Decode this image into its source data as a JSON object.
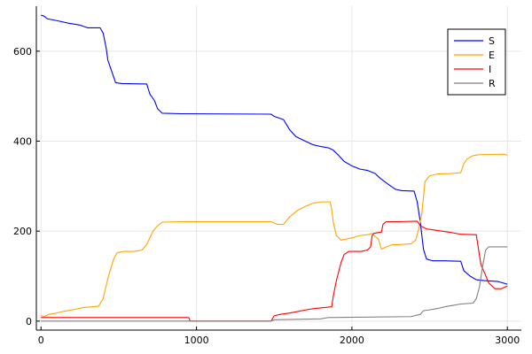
{
  "chart_data": {
    "type": "line",
    "title": "",
    "xlabel": "",
    "ylabel": "",
    "xlim": [
      -30,
      3090
    ],
    "ylim": [
      -20,
      700
    ],
    "xticks": [
      0,
      1000,
      2000,
      3000
    ],
    "yticks": [
      0,
      200,
      400,
      600
    ],
    "grid": true,
    "legend_position": "top-right",
    "series": [
      {
        "name": "S",
        "color": "#0000ff",
        "points": [
          [
            0,
            680
          ],
          [
            20,
            678
          ],
          [
            40,
            672
          ],
          [
            100,
            668
          ],
          [
            180,
            662
          ],
          [
            250,
            658
          ],
          [
            300,
            652
          ],
          [
            380,
            652
          ],
          [
            400,
            640
          ],
          [
            420,
            605
          ],
          [
            430,
            580
          ],
          [
            450,
            560
          ],
          [
            480,
            530
          ],
          [
            520,
            528
          ],
          [
            680,
            527
          ],
          [
            700,
            505
          ],
          [
            730,
            490
          ],
          [
            750,
            472
          ],
          [
            780,
            462
          ],
          [
            900,
            461
          ],
          [
            1480,
            460
          ],
          [
            1500,
            455
          ],
          [
            1560,
            448
          ],
          [
            1600,
            425
          ],
          [
            1640,
            410
          ],
          [
            1700,
            400
          ],
          [
            1750,
            392
          ],
          [
            1800,
            388
          ],
          [
            1850,
            385
          ],
          [
            1880,
            380
          ],
          [
            1910,
            370
          ],
          [
            1950,
            355
          ],
          [
            2000,
            345
          ],
          [
            2050,
            338
          ],
          [
            2100,
            335
          ],
          [
            2150,
            328
          ],
          [
            2180,
            318
          ],
          [
            2230,
            305
          ],
          [
            2280,
            293
          ],
          [
            2320,
            290
          ],
          [
            2400,
            289
          ],
          [
            2420,
            265
          ],
          [
            2440,
            220
          ],
          [
            2460,
            160
          ],
          [
            2480,
            138
          ],
          [
            2520,
            134
          ],
          [
            2600,
            134
          ],
          [
            2700,
            133
          ],
          [
            2720,
            112
          ],
          [
            2760,
            100
          ],
          [
            2800,
            92
          ],
          [
            2850,
            90
          ],
          [
            2940,
            88
          ],
          [
            2970,
            85
          ],
          [
            3000,
            82
          ]
        ]
      },
      {
        "name": "E",
        "color": "#ffa500",
        "points": [
          [
            0,
            12
          ],
          [
            20,
            10
          ],
          [
            50,
            15
          ],
          [
            100,
            18
          ],
          [
            150,
            22
          ],
          [
            200,
            25
          ],
          [
            270,
            30
          ],
          [
            370,
            33
          ],
          [
            400,
            50
          ],
          [
            420,
            80
          ],
          [
            440,
            108
          ],
          [
            470,
            140
          ],
          [
            490,
            152
          ],
          [
            530,
            155
          ],
          [
            600,
            155
          ],
          [
            650,
            158
          ],
          [
            680,
            170
          ],
          [
            700,
            185
          ],
          [
            720,
            200
          ],
          [
            750,
            212
          ],
          [
            780,
            220
          ],
          [
            900,
            221
          ],
          [
            1480,
            221
          ],
          [
            1520,
            215
          ],
          [
            1560,
            215
          ],
          [
            1600,
            232
          ],
          [
            1650,
            246
          ],
          [
            1700,
            255
          ],
          [
            1750,
            262
          ],
          [
            1800,
            265
          ],
          [
            1860,
            265
          ],
          [
            1870,
            248
          ],
          [
            1880,
            220
          ],
          [
            1900,
            190
          ],
          [
            1930,
            180
          ],
          [
            2000,
            185
          ],
          [
            2050,
            190
          ],
          [
            2100,
            192
          ],
          [
            2130,
            195
          ],
          [
            2150,
            188
          ],
          [
            2170,
            183
          ],
          [
            2190,
            160
          ],
          [
            2220,
            165
          ],
          [
            2260,
            170
          ],
          [
            2300,
            170
          ],
          [
            2380,
            172
          ],
          [
            2410,
            180
          ],
          [
            2430,
            205
          ],
          [
            2450,
            240
          ],
          [
            2460,
            275
          ],
          [
            2470,
            310
          ],
          [
            2500,
            323
          ],
          [
            2550,
            327
          ],
          [
            2640,
            328
          ],
          [
            2700,
            330
          ],
          [
            2720,
            350
          ],
          [
            2740,
            360
          ],
          [
            2780,
            368
          ],
          [
            2820,
            370
          ],
          [
            2980,
            371
          ],
          [
            3000,
            369
          ]
        ]
      },
      {
        "name": "I",
        "color": "#ff0000",
        "points": [
          [
            0,
            8
          ],
          [
            950,
            8
          ],
          [
            960,
            0
          ],
          [
            1480,
            0
          ],
          [
            1500,
            12
          ],
          [
            1540,
            15
          ],
          [
            1600,
            18
          ],
          [
            1660,
            22
          ],
          [
            1720,
            26
          ],
          [
            1760,
            28
          ],
          [
            1820,
            30
          ],
          [
            1870,
            32
          ],
          [
            1880,
            55
          ],
          [
            1900,
            90
          ],
          [
            1930,
            130
          ],
          [
            1950,
            148
          ],
          [
            1980,
            155
          ],
          [
            2060,
            155
          ],
          [
            2100,
            158
          ],
          [
            2120,
            165
          ],
          [
            2130,
            190
          ],
          [
            2140,
            195
          ],
          [
            2190,
            198
          ],
          [
            2200,
            215
          ],
          [
            2220,
            221
          ],
          [
            2300,
            221
          ],
          [
            2420,
            222
          ],
          [
            2440,
            212
          ],
          [
            2480,
            205
          ],
          [
            2540,
            202
          ],
          [
            2580,
            200
          ],
          [
            2620,
            198
          ],
          [
            2700,
            193
          ],
          [
            2800,
            192
          ],
          [
            2830,
            125
          ],
          [
            2850,
            110
          ],
          [
            2880,
            85
          ],
          [
            2920,
            72
          ],
          [
            2960,
            72
          ],
          [
            2980,
            75
          ],
          [
            3000,
            78
          ]
        ]
      },
      {
        "name": "R",
        "color": "#808080",
        "points": [
          [
            0,
            0
          ],
          [
            1480,
            0
          ],
          [
            1500,
            3
          ],
          [
            1800,
            5
          ],
          [
            1850,
            8
          ],
          [
            2380,
            10
          ],
          [
            2440,
            15
          ],
          [
            2460,
            23
          ],
          [
            2500,
            25
          ],
          [
            2550,
            28
          ],
          [
            2600,
            32
          ],
          [
            2650,
            35
          ],
          [
            2700,
            38
          ],
          [
            2780,
            40
          ],
          [
            2800,
            50
          ],
          [
            2820,
            75
          ],
          [
            2840,
            120
          ],
          [
            2860,
            158
          ],
          [
            2880,
            165
          ],
          [
            3000,
            165
          ]
        ]
      }
    ]
  }
}
